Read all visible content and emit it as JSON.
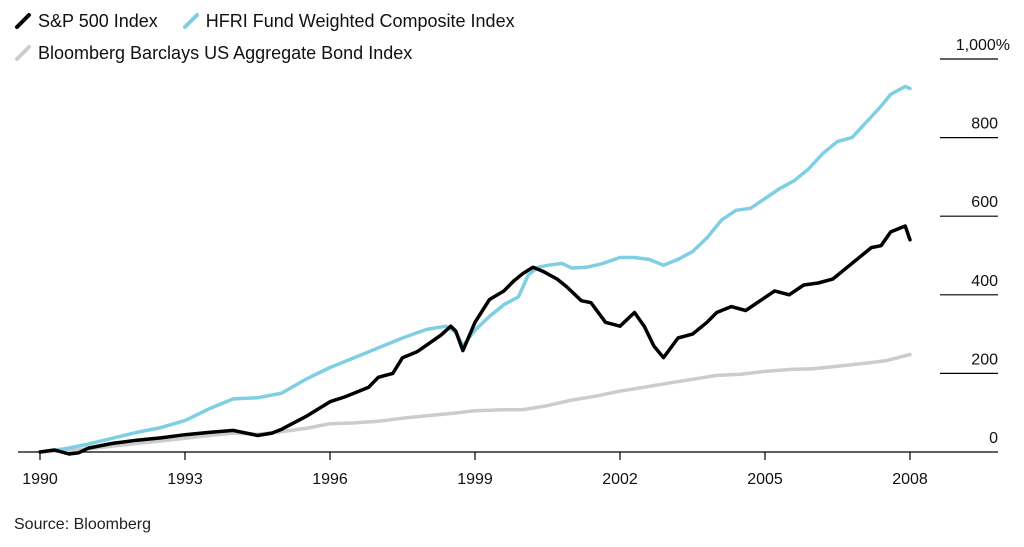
{
  "chart_data": {
    "type": "line",
    "title": "",
    "xlabel": "",
    "ylabel": "",
    "x_range": [
      1990,
      2008
    ],
    "ylim": [
      0,
      1000
    ],
    "x_ticks": [
      {
        "value": 1990,
        "label": "1990"
      },
      {
        "value": 1993,
        "label": "1993"
      },
      {
        "value": 1996,
        "label": "1996"
      },
      {
        "value": 1999,
        "label": "1999"
      },
      {
        "value": 2002,
        "label": "2002"
      },
      {
        "value": 2005,
        "label": "2005"
      },
      {
        "value": 2008,
        "label": "2008"
      }
    ],
    "y_ticks": [
      {
        "value": 1000,
        "label": "1,000%"
      },
      {
        "value": 800,
        "label": "800"
      },
      {
        "value": 600,
        "label": "600"
      },
      {
        "value": 400,
        "label": "400"
      },
      {
        "value": 200,
        "label": "200"
      },
      {
        "value": 0,
        "label": "0"
      }
    ],
    "grid": false,
    "legend_position": "top-left",
    "series": [
      {
        "name": "S&P 500 Index",
        "color": "#000000",
        "x": [
          1990.0,
          1990.3,
          1990.6,
          1990.8,
          1991.0,
          1991.5,
          1992.0,
          1992.5,
          1993.0,
          1993.5,
          1994.0,
          1994.5,
          1994.8,
          1995.0,
          1995.5,
          1996.0,
          1996.3,
          1996.5,
          1996.8,
          1997.0,
          1997.3,
          1997.5,
          1997.8,
          1998.0,
          1998.3,
          1998.5,
          1998.6,
          1998.75,
          1999.0,
          1999.3,
          1999.6,
          1999.8,
          2000.0,
          2000.2,
          2000.4,
          2000.7,
          2000.9,
          2001.2,
          2001.4,
          2001.7,
          2002.0,
          2002.3,
          2002.5,
          2002.7,
          2002.9,
          2003.2,
          2003.5,
          2003.8,
          2004.0,
          2004.3,
          2004.6,
          2004.9,
          2005.2,
          2005.5,
          2005.8,
          2006.1,
          2006.4,
          2006.7,
          2007.0,
          2007.2,
          2007.4,
          2007.6,
          2007.8,
          2007.9,
          2008.0
        ],
        "y": [
          0,
          5,
          -5,
          -2,
          10,
          22,
          30,
          36,
          44,
          50,
          55,
          42,
          48,
          58,
          90,
          128,
          140,
          150,
          165,
          190,
          200,
          240,
          255,
          272,
          298,
          320,
          308,
          258,
          330,
          388,
          410,
          435,
          455,
          470,
          460,
          440,
          420,
          385,
          380,
          330,
          320,
          355,
          320,
          270,
          240,
          290,
          300,
          330,
          355,
          370,
          360,
          385,
          410,
          400,
          425,
          430,
          440,
          470,
          500,
          520,
          525,
          560,
          570,
          575,
          540
        ]
      },
      {
        "name": "HFRI Fund Weighted Composite Index",
        "color": "#7ecfe3",
        "x": [
          1990.0,
          1990.5,
          1991.0,
          1991.5,
          1992.0,
          1992.5,
          1993.0,
          1993.5,
          1994.0,
          1994.5,
          1995.0,
          1995.5,
          1996.0,
          1996.5,
          1997.0,
          1997.5,
          1998.0,
          1998.4,
          1998.6,
          1998.75,
          1999.0,
          1999.3,
          1999.6,
          1999.9,
          2000.1,
          2000.3,
          2000.5,
          2000.8,
          2001.0,
          2001.3,
          2001.6,
          2002.0,
          2002.3,
          2002.6,
          2002.9,
          2003.2,
          2003.5,
          2003.8,
          2004.1,
          2004.4,
          2004.7,
          2005.0,
          2005.3,
          2005.6,
          2005.9,
          2006.2,
          2006.5,
          2006.8,
          2007.1,
          2007.4,
          2007.6,
          2007.75,
          2007.9,
          2008.0
        ],
        "y": [
          0,
          8,
          20,
          35,
          50,
          62,
          80,
          110,
          135,
          138,
          150,
          185,
          215,
          240,
          265,
          290,
          312,
          320,
          305,
          270,
          310,
          345,
          375,
          395,
          450,
          470,
          475,
          480,
          468,
          470,
          478,
          495,
          495,
          490,
          475,
          490,
          510,
          545,
          590,
          615,
          620,
          645,
          670,
          690,
          720,
          760,
          790,
          800,
          840,
          880,
          910,
          920,
          930,
          925
        ]
      },
      {
        "name": "Bloomberg Barclays US Aggregate Bond Index",
        "color": "#cccccc",
        "x": [
          1990.0,
          1990.5,
          1991.0,
          1991.5,
          1992.0,
          1992.5,
          1993.0,
          1993.5,
          1994.0,
          1994.5,
          1995.0,
          1995.5,
          1996.0,
          1996.5,
          1997.0,
          1997.5,
          1998.0,
          1998.5,
          1999.0,
          1999.5,
          2000.0,
          2000.5,
          2001.0,
          2001.5,
          2002.0,
          2002.5,
          2003.0,
          2003.5,
          2004.0,
          2004.5,
          2005.0,
          2005.5,
          2006.0,
          2006.5,
          2007.0,
          2007.5,
          2008.0
        ],
        "y": [
          0,
          3,
          8,
          15,
          22,
          28,
          35,
          42,
          48,
          45,
          52,
          60,
          72,
          74,
          78,
          86,
          92,
          98,
          105,
          107,
          108,
          118,
          132,
          142,
          155,
          165,
          175,
          185,
          195,
          198,
          205,
          210,
          212,
          218,
          225,
          232,
          248
        ]
      }
    ]
  },
  "source": "Source: Bloomberg"
}
